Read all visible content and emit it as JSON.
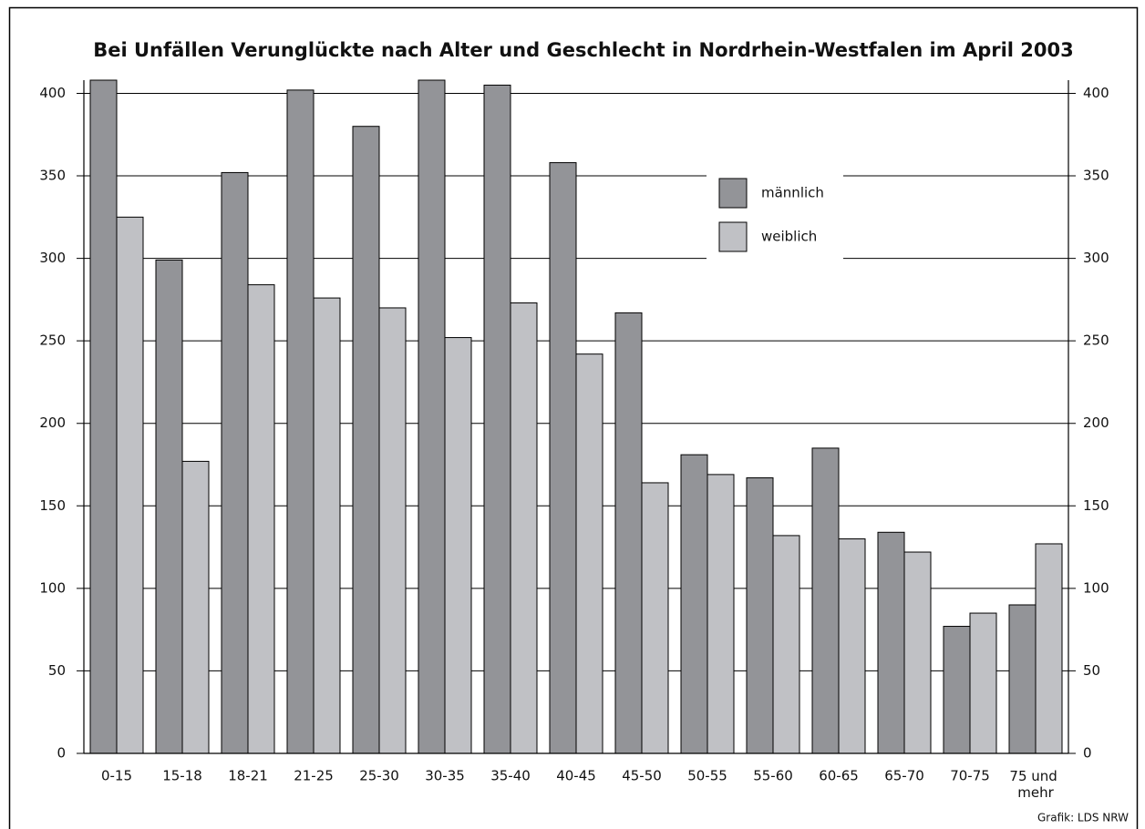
{
  "chart_data": {
    "type": "bar",
    "title": "Bei Unfällen Verunglückte nach Alter und Geschlecht in Nordrhein-Westfalen im April 2003",
    "categories": [
      "0-15",
      "15-18",
      "18-21",
      "21-25",
      "25-30",
      "30-35",
      "35-40",
      "40-45",
      "45-50",
      "50-55",
      "55-60",
      "60-65",
      "65-70",
      "70-75",
      "75 und mehr"
    ],
    "series": [
      {
        "name": "männlich",
        "color": "#939498",
        "values": [
          408,
          299,
          352,
          402,
          380,
          408,
          405,
          358,
          267,
          181,
          167,
          185,
          134,
          77,
          90
        ]
      },
      {
        "name": "weiblich",
        "color": "#c0c1c5",
        "values": [
          325,
          177,
          284,
          276,
          270,
          252,
          273,
          242,
          164,
          169,
          132,
          130,
          122,
          85,
          127
        ]
      }
    ],
    "ylim": [
      0,
      408
    ],
    "yticks": [
      0,
      50,
      100,
      150,
      200,
      250,
      300,
      350,
      400
    ],
    "grid": true,
    "source": "Grafik: LDS NRW"
  }
}
